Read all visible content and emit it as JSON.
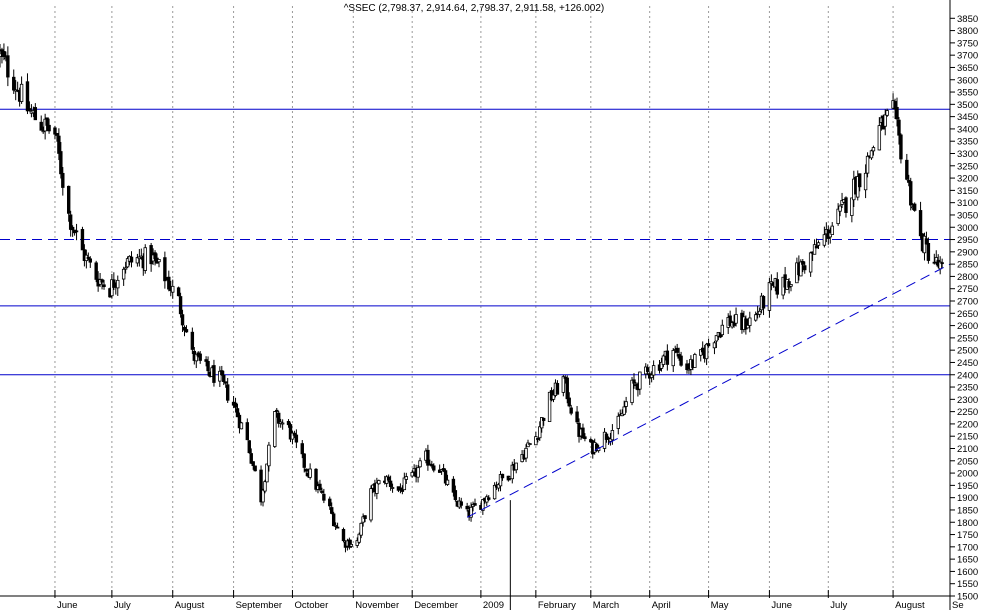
{
  "chart_data": {
    "type": "candlestick",
    "title": "^SSEC (2,798.37, 2,914.64, 2,798.37, 2,911.58, +126.002)",
    "xlabel": "",
    "ylabel": "",
    "ylim": [
      1500,
      3900
    ],
    "y_ticks": [
      1500,
      1550,
      1600,
      1650,
      1700,
      1750,
      1800,
      1850,
      1900,
      1950,
      2000,
      2050,
      2100,
      2150,
      2200,
      2250,
      2300,
      2350,
      2400,
      2450,
      2500,
      2550,
      2600,
      2650,
      2700,
      2750,
      2800,
      2850,
      2900,
      2950,
      3000,
      3050,
      3100,
      3150,
      3200,
      3250,
      3300,
      3350,
      3400,
      3450,
      3500,
      3550,
      3600,
      3650,
      3700,
      3750,
      3800,
      3850
    ],
    "x_range": [
      "2008-05-05",
      "2009-09-01"
    ],
    "month_labels": [
      {
        "label": "June",
        "date": "2008-06-02"
      },
      {
        "label": "July",
        "date": "2008-07-01"
      },
      {
        "label": "August",
        "date": "2008-08-01"
      },
      {
        "label": "September",
        "date": "2008-09-01"
      },
      {
        "label": "October",
        "date": "2008-10-01"
      },
      {
        "label": "November",
        "date": "2008-11-01"
      },
      {
        "label": "December",
        "date": "2008-12-01"
      },
      {
        "label": "2009",
        "date": "2009-01-05"
      },
      {
        "label": "February",
        "date": "2009-02-02"
      },
      {
        "label": "March",
        "date": "2009-03-02"
      },
      {
        "label": "April",
        "date": "2009-04-01"
      },
      {
        "label": "May",
        "date": "2009-05-01"
      },
      {
        "label": "June",
        "date": "2009-06-01"
      },
      {
        "label": "July",
        "date": "2009-07-01"
      },
      {
        "label": "August",
        "date": "2009-08-03"
      },
      {
        "label": "Se",
        "date": "2009-09-01"
      }
    ],
    "close_path": [
      [
        "2008-05-05",
        3700
      ],
      [
        "2008-05-12",
        3600
      ],
      [
        "2008-05-19",
        3480
      ],
      [
        "2008-05-26",
        3420
      ],
      [
        "2008-06-02",
        3380
      ],
      [
        "2008-06-09",
        3050
      ],
      [
        "2008-06-16",
        2900
      ],
      [
        "2008-06-23",
        2800
      ],
      [
        "2008-06-30",
        2750
      ],
      [
        "2008-07-07",
        2850
      ],
      [
        "2008-07-14",
        2870
      ],
      [
        "2008-07-21",
        2880
      ],
      [
        "2008-07-28",
        2800
      ],
      [
        "2008-08-04",
        2700
      ],
      [
        "2008-08-11",
        2480
      ],
      [
        "2008-08-18",
        2420
      ],
      [
        "2008-08-25",
        2380
      ],
      [
        "2008-09-01",
        2280
      ],
      [
        "2008-09-08",
        2130
      ],
      [
        "2008-09-15",
        1900
      ],
      [
        "2008-09-22",
        2230
      ],
      [
        "2008-09-29",
        2180
      ],
      [
        "2008-10-06",
        2050
      ],
      [
        "2008-10-13",
        1950
      ],
      [
        "2008-10-20",
        1850
      ],
      [
        "2008-10-27",
        1720
      ],
      [
        "2008-11-03",
        1720
      ],
      [
        "2008-11-10",
        1920
      ],
      [
        "2008-11-17",
        1980
      ],
      [
        "2008-11-24",
        1930
      ],
      [
        "2008-12-01",
        1980
      ],
      [
        "2008-12-08",
        2060
      ],
      [
        "2008-12-15",
        2020
      ],
      [
        "2008-12-22",
        1900
      ],
      [
        "2008-12-29",
        1830
      ],
      [
        "2009-01-05",
        1880
      ],
      [
        "2009-01-12",
        1950
      ],
      [
        "2009-01-19",
        2000
      ],
      [
        "2009-02-02",
        2150
      ],
      [
        "2009-02-09",
        2300
      ],
      [
        "2009-02-16",
        2380
      ],
      [
        "2009-02-23",
        2180
      ],
      [
        "2009-03-02",
        2100
      ],
      [
        "2009-03-09",
        2150
      ],
      [
        "2009-03-16",
        2200
      ],
      [
        "2009-03-23",
        2350
      ],
      [
        "2009-03-30",
        2400
      ],
      [
        "2009-04-06",
        2450
      ],
      [
        "2009-04-13",
        2500
      ],
      [
        "2009-04-20",
        2430
      ],
      [
        "2009-04-27",
        2470
      ],
      [
        "2009-05-04",
        2560
      ],
      [
        "2009-05-11",
        2620
      ],
      [
        "2009-05-18",
        2600
      ],
      [
        "2009-05-25",
        2640
      ],
      [
        "2009-06-01",
        2740
      ],
      [
        "2009-06-08",
        2770
      ],
      [
        "2009-06-15",
        2820
      ],
      [
        "2009-06-22",
        2880
      ],
      [
        "2009-06-29",
        2960
      ],
      [
        "2009-07-06",
        3040
      ],
      [
        "2009-07-13",
        3150
      ],
      [
        "2009-07-20",
        3250
      ],
      [
        "2009-07-27",
        3400
      ],
      [
        "2009-08-03",
        3470
      ],
      [
        "2009-08-10",
        3200
      ],
      [
        "2009-08-17",
        2950
      ],
      [
        "2009-08-24",
        2860
      ],
      [
        "2009-08-31",
        2800
      ]
    ],
    "horizontal_lines": [
      {
        "y": 3480,
        "style": "solid"
      },
      {
        "y": 2950,
        "style": "dashed"
      },
      {
        "y": 2680,
        "style": "solid"
      },
      {
        "y": 2400,
        "style": "solid"
      }
    ],
    "trendline": {
      "from": [
        "2008-12-29",
        1820
      ],
      "to": [
        "2009-09-01",
        2850
      ],
      "style": "dashed"
    },
    "volume_spike_date": "2009-01-20",
    "colors": {
      "background": "#ffffff",
      "grid": "#9a9a9a",
      "lines": "#0000cc",
      "candles": "#000000"
    },
    "grid": true,
    "y_axis_side": "right"
  }
}
